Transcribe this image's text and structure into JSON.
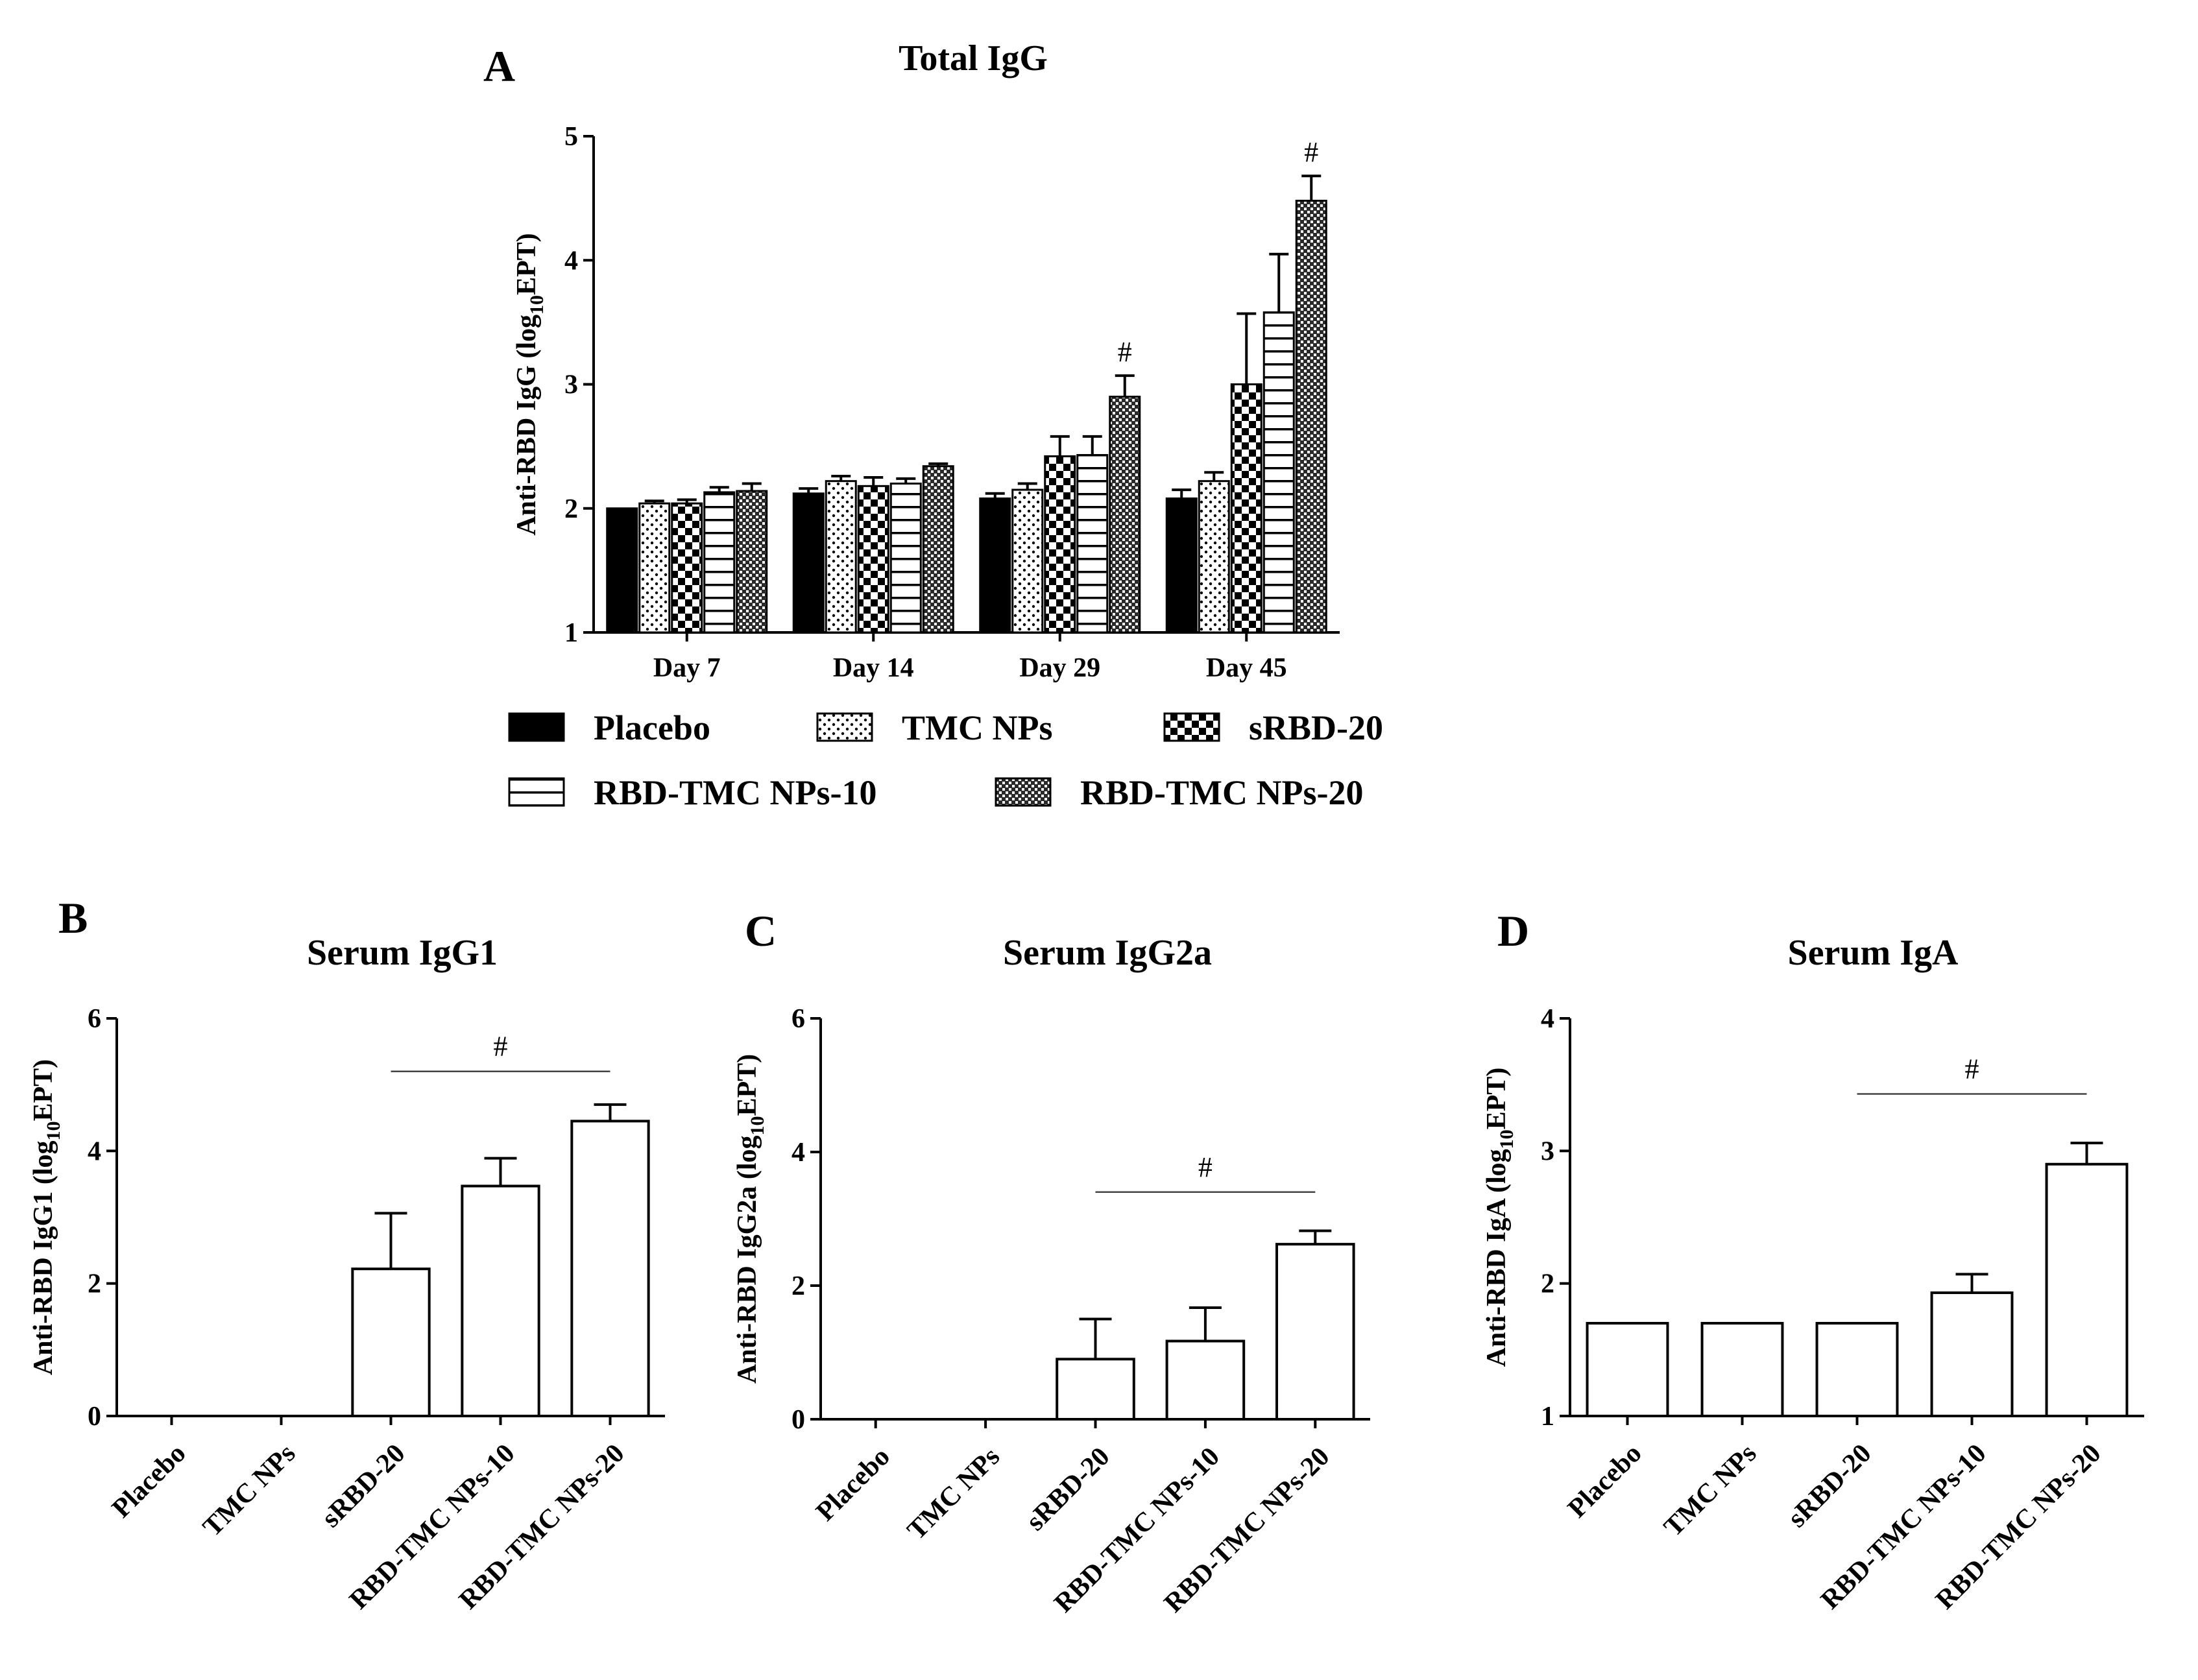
{
  "figure": {
    "panels": [
      {
        "letter": "A",
        "title": "Total IgG"
      },
      {
        "letter": "B",
        "title": "Serum IgG1"
      },
      {
        "letter": "C",
        "title": "Serum IgG2a"
      },
      {
        "letter": "D",
        "title": "Serum IgA"
      }
    ]
  },
  "chart_data": [
    {
      "type": "bar",
      "title": "Total IgG",
      "ylabel": "Anti-RBD IgG (log10EPT)",
      "ylim": [
        1,
        5
      ],
      "yticks": [
        1,
        2,
        3,
        4,
        5
      ],
      "categories": [
        "Day 7",
        "Day 14",
        "Day 29",
        "Day 45"
      ],
      "series": [
        {
          "name": "Placebo",
          "pattern": "solid",
          "values": [
            2.0,
            2.12,
            2.08,
            2.08
          ],
          "errors": [
            0.0,
            0.04,
            0.04,
            0.07
          ]
        },
        {
          "name": "TMC NPs",
          "pattern": "dots",
          "values": [
            2.04,
            2.22,
            2.15,
            2.22
          ],
          "errors": [
            0.02,
            0.04,
            0.05,
            0.07
          ]
        },
        {
          "name": "sRBD-20",
          "pattern": "checker",
          "values": [
            2.04,
            2.18,
            2.42,
            3.0
          ],
          "errors": [
            0.03,
            0.07,
            0.16,
            0.57
          ]
        },
        {
          "name": "RBD-TMC NPs-10",
          "pattern": "hlines",
          "values": [
            2.13,
            2.2,
            2.43,
            3.58
          ],
          "errors": [
            0.04,
            0.04,
            0.15,
            0.47
          ]
        },
        {
          "name": "RBD-TMC NPs-20",
          "pattern": "crosshatch",
          "values": [
            2.14,
            2.34,
            2.9,
            4.48
          ],
          "errors": [
            0.06,
            0.02,
            0.17,
            0.2
          ]
        }
      ],
      "annotations": [
        {
          "text": "#",
          "category": "Day 29",
          "series": "RBD-TMC NPs-20"
        },
        {
          "text": "#",
          "category": "Day 45",
          "series": "RBD-TMC NPs-20"
        }
      ],
      "legend": {
        "placement": "bottom"
      }
    },
    {
      "type": "bar",
      "title": "Serum IgG1",
      "ylabel": "Anti-RBD IgG1 (log10EPT)",
      "ylim": [
        0,
        6
      ],
      "yticks": [
        0,
        2,
        4,
        6
      ],
      "categories": [
        "Placebo",
        "TMC NPs",
        "sRBD-20",
        "RBD-TMC NPs-10",
        "RBD-TMC NPs-20"
      ],
      "values": [
        0,
        0,
        2.22,
        3.47,
        4.45
      ],
      "errors": [
        0,
        0,
        0.84,
        0.42,
        0.25
      ],
      "significance": {
        "text": "#",
        "from": "sRBD-20",
        "to": "RBD-TMC NPs-20",
        "y": 5.2
      }
    },
    {
      "type": "bar",
      "title": "Serum IgG2a",
      "ylabel": "Anti-RBD IgG2a (log10EPT)",
      "ylim": [
        0,
        6
      ],
      "yticks": [
        0,
        2,
        4,
        6
      ],
      "categories": [
        "Placebo",
        "TMC NPs",
        "sRBD-20",
        "RBD-TMC NPs-10",
        "RBD-TMC NPs-20"
      ],
      "values": [
        0,
        0,
        0.9,
        1.17,
        2.62
      ],
      "errors": [
        0,
        0,
        0.6,
        0.5,
        0.2
      ],
      "significance": {
        "text": "#",
        "from": "sRBD-20",
        "to": "RBD-TMC NPs-20",
        "y": 3.4
      }
    },
    {
      "type": "bar",
      "title": "Serum IgA",
      "ylabel": "Anti-RBD IgA (log10EPT)",
      "ylim": [
        1,
        4
      ],
      "yticks": [
        1,
        2,
        3,
        4
      ],
      "categories": [
        "Placebo",
        "TMC NPs",
        "sRBD-20",
        "RBD-TMC NPs-10",
        "RBD-TMC NPs-20"
      ],
      "values": [
        1.7,
        1.7,
        1.7,
        1.93,
        2.9
      ],
      "errors": [
        0,
        0,
        0,
        0.14,
        0.16
      ],
      "significance": {
        "text": "#",
        "from": "sRBD-20",
        "to": "RBD-TMC NPs-20",
        "y": 3.43
      }
    }
  ]
}
